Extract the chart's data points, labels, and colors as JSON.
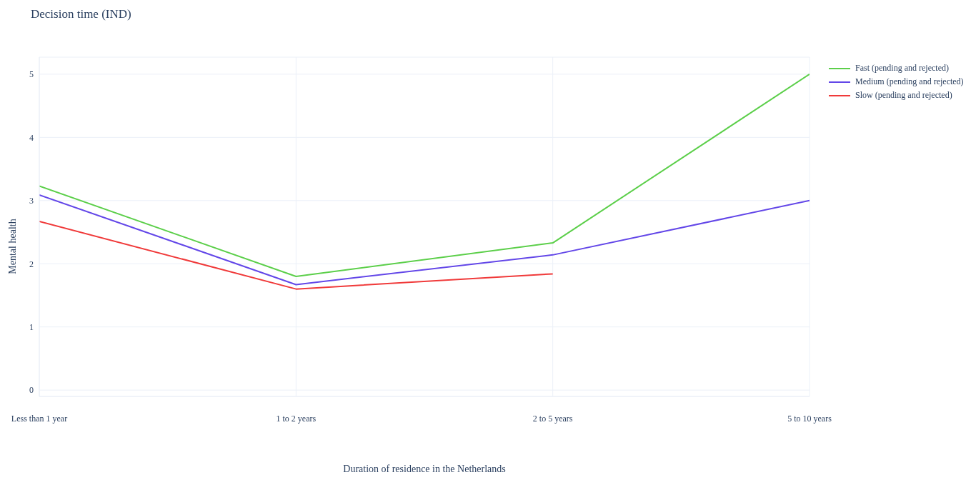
{
  "chart_data": {
    "type": "line",
    "title": "Decision time (IND)",
    "xlabel": "Duration of residence in the Netherlands",
    "ylabel": "Mental health",
    "categories": [
      "Less than 1 year",
      "1 to 2 years",
      "2 to 5 years",
      "5 to 10 years"
    ],
    "series": [
      {
        "name": "Fast (pending and rejected)",
        "color": "#5ccf4a",
        "values": [
          3.23,
          1.8,
          2.33,
          5
        ]
      },
      {
        "name": "Medium (pending and rejected)",
        "color": "#6347e8",
        "values": [
          3.09,
          1.67,
          2.14,
          3
        ]
      },
      {
        "name": "Slow (pending and rejected)",
        "color": "#f03a3a",
        "values": [
          2.67,
          1.6,
          1.84,
          null
        ]
      }
    ],
    "ylim": [
      -0.1,
      5.27
    ],
    "yticks": [
      0,
      1,
      2,
      3,
      4,
      5
    ],
    "grid": true,
    "legend": "top right",
    "marker": "none",
    "line_style": "solid"
  }
}
